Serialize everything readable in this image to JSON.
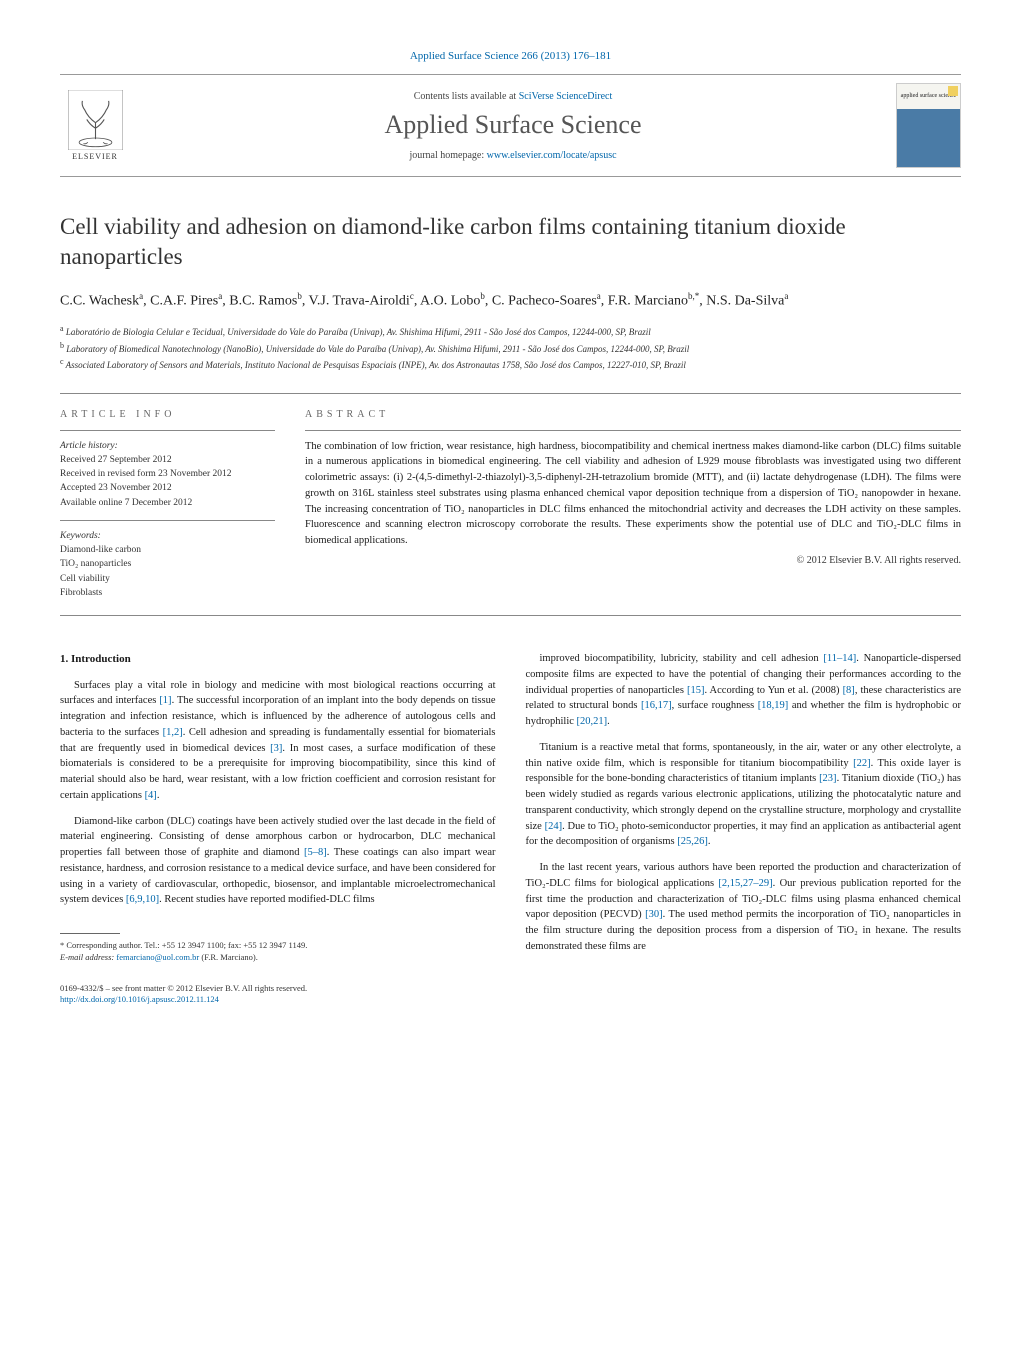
{
  "header": {
    "citation": "Applied Surface Science 266 (2013) 176–181",
    "contents_prefix": "Contents lists available at ",
    "contents_link": "SciVerse ScienceDirect",
    "journal_title": "Applied Surface Science",
    "homepage_prefix": "journal homepage: ",
    "homepage_url": "www.elsevier.com/locate/apsusc",
    "publisher": "ELSEVIER",
    "cover_text": "applied surface science"
  },
  "article": {
    "title": "Cell viability and adhesion on diamond-like carbon films containing titanium dioxide nanoparticles",
    "authors_html": "C.C. Wachesk<sup>a</sup>, C.A.F. Pires<sup>a</sup>, B.C. Ramos<sup>b</sup>, V.J. Trava-Airoldi<sup>c</sup>, A.O. Lobo<sup>b</sup>, C. Pacheco-Soares<sup>a</sup>, F.R. Marciano<sup>b,*</sup>, N.S. Da-Silva<sup>a</sup>",
    "affiliations": [
      "a Laboratório de Biologia Celular e Tecidual, Universidade do Vale do Paraíba (Univap), Av. Shishima Hifumi, 2911 - São José dos Campos, 12244-000, SP, Brazil",
      "b Laboratory of Biomedical Nanotechnology (NanoBio), Universidade do Vale do Paraíba (Univap), Av. Shishima Hifumi, 2911 - São José dos Campos, 12244-000, SP, Brazil",
      "c Associated Laboratory of Sensors and Materials, Instituto Nacional de Pesquisas Espaciais (INPE), Av. dos Astronautas 1758, São José dos Campos, 12227-010, SP, Brazil"
    ]
  },
  "info": {
    "heading": "article info",
    "history_label": "Article history:",
    "received": "Received 27 September 2012",
    "revised": "Received in revised form 23 November 2012",
    "accepted": "Accepted 23 November 2012",
    "online": "Available online 7 December 2012",
    "keywords_label": "Keywords:",
    "keywords": [
      "Diamond-like carbon",
      "TiO₂ nanoparticles",
      "Cell viability",
      "Fibroblasts"
    ]
  },
  "abstract": {
    "heading": "abstract",
    "text": "The combination of low friction, wear resistance, high hardness, biocompatibility and chemical inertness makes diamond-like carbon (DLC) films suitable in a numerous applications in biomedical engineering. The cell viability and adhesion of L929 mouse fibroblasts was investigated using two different colorimetric assays: (i) 2-(4,5-dimethyl-2-thiazolyl)-3,5-diphenyl-2H-tetrazolium bromide (MTT), and (ii) lactate dehydrogenase (LDH). The films were growth on 316L stainless steel substrates using plasma enhanced chemical vapor deposition technique from a dispersion of TiO₂ nanopowder in hexane. The increasing concentration of TiO₂ nanoparticles in DLC films enhanced the mitochondrial activity and decreases the LDH activity on these samples. Fluorescence and scanning electron microscopy corroborate the results. These experiments show the potential use of DLC and TiO₂-DLC films in biomedical applications.",
    "copyright": "© 2012 Elsevier B.V. All rights reserved."
  },
  "body": {
    "section_number": "1.",
    "section_title": "Introduction",
    "col1": [
      "Surfaces play a vital role in biology and medicine with most biological reactions occurring at surfaces and interfaces [1]. The successful incorporation of an implant into the body depends on tissue integration and infection resistance, which is influenced by the adherence of autologous cells and bacteria to the surfaces [1,2]. Cell adhesion and spreading is fundamentally essential for biomaterials that are frequently used in biomedical devices [3]. In most cases, a surface modification of these biomaterials is considered to be a prerequisite for improving biocompatibility, since this kind of material should also be hard, wear resistant, with a low friction coefficient and corrosion resistant for certain applications [4].",
      "Diamond-like carbon (DLC) coatings have been actively studied over the last decade in the field of material engineering. Consisting of dense amorphous carbon or hydrocarbon, DLC mechanical properties fall between those of graphite and diamond [5–8]. These coatings can also impart wear resistance, hardness, and corrosion resistance to a medical device surface, and have been considered for using in a variety of cardiovascular, orthopedic, biosensor, and implantable microelectromechanical system devices [6,9,10]. Recent studies have reported modified-DLC films"
    ],
    "col2": [
      "improved biocompatibility, lubricity, stability and cell adhesion [11–14]. Nanoparticle-dispersed composite films are expected to have the potential of changing their performances according to the individual properties of nanoparticles [15]. According to Yun et al. (2008) [8], these characteristics are related to structural bonds [16,17], surface roughness [18,19] and whether the film is hydrophobic or hydrophilic [20,21].",
      "Titanium is a reactive metal that forms, spontaneously, in the air, water or any other electrolyte, a thin native oxide film, which is responsible for titanium biocompatibility [22]. This oxide layer is responsible for the bone-bonding characteristics of titanium implants [23]. Titanium dioxide (TiO₂) has been widely studied as regards various electronic applications, utilizing the photocatalytic nature and transparent conductivity, which strongly depend on the crystalline structure, morphology and crystallite size [24]. Due to TiO₂ photo-semiconductor properties, it may find an application as antibacterial agent for the decomposition of organisms [25,26].",
      "In the last recent years, various authors have been reported the production and characterization of TiO₂-DLC films for biological applications [2,15,27–29]. Our previous publication reported for the first time the production and characterization of TiO₂-DLC films using plasma enhanced chemical vapor deposition (PECVD) [30]. The used method permits the incorporation of TiO₂ nanoparticles in the film structure during the deposition process from a dispersion of TiO₂ in hexane. The results demonstrated these films are"
    ]
  },
  "footnote": {
    "corresponding": "* Corresponding author. Tel.: +55 12 3947 1100; fax: +55 12 3947 1149.",
    "email_label": "E-mail address:",
    "email": "femarciano@uol.com.br",
    "email_author": "(F.R. Marciano)."
  },
  "bottom": {
    "issn": "0169-4332/$ – see front matter © 2012 Elsevier B.V. All rights reserved.",
    "doi": "http://dx.doi.org/10.1016/j.apsusc.2012.11.124"
  },
  "colors": {
    "link": "#0066aa",
    "text": "#1a1a1a",
    "heading_gray": "#666666",
    "rule": "#888888"
  }
}
